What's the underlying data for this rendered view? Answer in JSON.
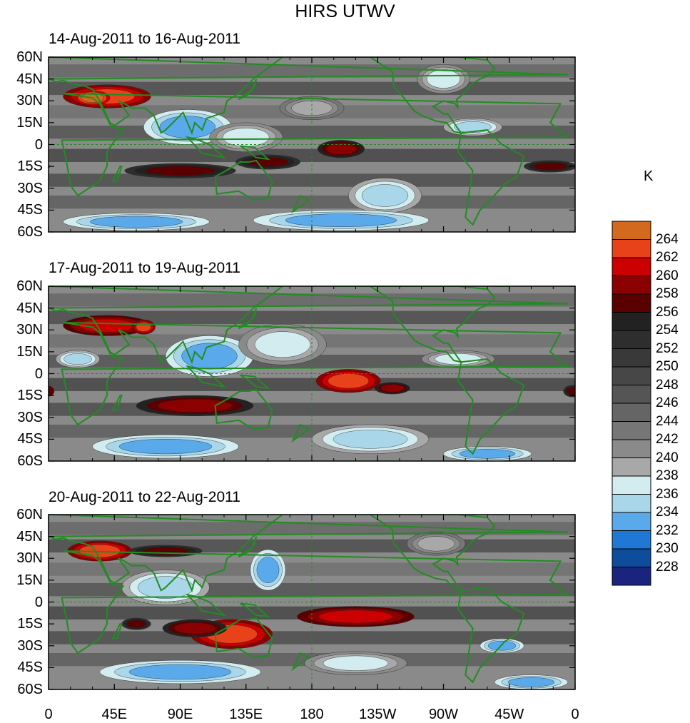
{
  "title": "HIRS UTWV",
  "panels": [
    {
      "title": "14-Aug-2011 to 16-Aug-2011",
      "blobs": [
        {
          "lon": 40,
          "lat": 33,
          "rx": 30,
          "ry": 8,
          "v": 262
        },
        {
          "lon": 30,
          "lat": 32,
          "rx": 12,
          "ry": 5,
          "v": 264
        },
        {
          "lon": 90,
          "lat": -18,
          "rx": 38,
          "ry": 5,
          "v": 257
        },
        {
          "lon": 150,
          "lat": -12,
          "rx": 22,
          "ry": 5,
          "v": 257
        },
        {
          "lon": 200,
          "lat": -3,
          "rx": 16,
          "ry": 6,
          "v": 259
        },
        {
          "lon": 343,
          "lat": -15,
          "rx": 18,
          "ry": 4,
          "v": 257
        },
        {
          "lon": 95,
          "lat": 12,
          "rx": 30,
          "ry": 12,
          "v": 233
        },
        {
          "lon": 135,
          "lat": 5,
          "rx": 25,
          "ry": 10,
          "v": 236
        },
        {
          "lon": 230,
          "lat": -35,
          "rx": 25,
          "ry": 12,
          "v": 234
        },
        {
          "lon": 60,
          "lat": -53,
          "rx": 50,
          "ry": 6,
          "v": 232
        },
        {
          "lon": 200,
          "lat": -52,
          "rx": 60,
          "ry": 7,
          "v": 233
        },
        {
          "lon": 290,
          "lat": 12,
          "rx": 20,
          "ry": 6,
          "v": 235
        },
        {
          "lon": 270,
          "lat": 45,
          "rx": 18,
          "ry": 10,
          "v": 237
        },
        {
          "lon": 180,
          "lat": 25,
          "rx": 22,
          "ry": 8,
          "v": 238
        }
      ]
    },
    {
      "title": "17-Aug-2011 to 19-Aug-2011",
      "blobs": [
        {
          "lon": 40,
          "lat": 33,
          "rx": 30,
          "ry": 7,
          "v": 261
        },
        {
          "lon": 65,
          "lat": 32,
          "rx": 8,
          "ry": 5,
          "v": 263
        },
        {
          "lon": 100,
          "lat": -22,
          "rx": 40,
          "ry": 7,
          "v": 258
        },
        {
          "lon": 205,
          "lat": -5,
          "rx": 22,
          "ry": 8,
          "v": 262
        },
        {
          "lon": 235,
          "lat": -10,
          "rx": 12,
          "ry": 4,
          "v": 258
        },
        {
          "lon": 358,
          "lat": -12,
          "rx": 6,
          "ry": 4,
          "v": 257
        },
        {
          "lon": 110,
          "lat": 12,
          "rx": 30,
          "ry": 14,
          "v": 233
        },
        {
          "lon": 160,
          "lat": 20,
          "rx": 30,
          "ry": 14,
          "v": 236
        },
        {
          "lon": 80,
          "lat": -50,
          "rx": 50,
          "ry": 8,
          "v": 233
        },
        {
          "lon": 220,
          "lat": -45,
          "rx": 40,
          "ry": 10,
          "v": 235
        },
        {
          "lon": 300,
          "lat": -55,
          "rx": 30,
          "ry": 5,
          "v": 232
        },
        {
          "lon": 280,
          "lat": 10,
          "rx": 25,
          "ry": 6,
          "v": 236
        },
        {
          "lon": 20,
          "lat": 10,
          "rx": 15,
          "ry": 6,
          "v": 235
        }
      ]
    },
    {
      "title": "20-Aug-2011 to 22-Aug-2011",
      "blobs": [
        {
          "lon": 35,
          "lat": 35,
          "rx": 22,
          "ry": 7,
          "v": 262
        },
        {
          "lon": 80,
          "lat": 35,
          "rx": 25,
          "ry": 4,
          "v": 257
        },
        {
          "lon": 125,
          "lat": -22,
          "rx": 28,
          "ry": 10,
          "v": 262
        },
        {
          "lon": 100,
          "lat": -18,
          "rx": 22,
          "ry": 6,
          "v": 258
        },
        {
          "lon": 210,
          "lat": -10,
          "rx": 40,
          "ry": 7,
          "v": 261
        },
        {
          "lon": 60,
          "lat": -15,
          "rx": 10,
          "ry": 4,
          "v": 257
        },
        {
          "lon": 80,
          "lat": 10,
          "rx": 30,
          "ry": 12,
          "v": 234
        },
        {
          "lon": 150,
          "lat": 22,
          "rx": 12,
          "ry": 14,
          "v": 233
        },
        {
          "lon": 90,
          "lat": -48,
          "rx": 55,
          "ry": 8,
          "v": 233
        },
        {
          "lon": 210,
          "lat": -42,
          "rx": 35,
          "ry": 8,
          "v": 236
        },
        {
          "lon": 310,
          "lat": -30,
          "rx": 15,
          "ry": 5,
          "v": 232
        },
        {
          "lon": 330,
          "lat": -55,
          "rx": 25,
          "ry": 5,
          "v": 232
        },
        {
          "lon": 265,
          "lat": 40,
          "rx": 20,
          "ry": 8,
          "v": 238
        }
      ]
    }
  ],
  "x_ticks": [
    "0",
    "45E",
    "90E",
    "135E",
    "180",
    "135W",
    "90W",
    "45W",
    "0"
  ],
  "y_ticks": [
    "60N",
    "45N",
    "30N",
    "15N",
    "0",
    "15S",
    "30S",
    "45S",
    "60S"
  ],
  "colorbar": {
    "unit": "K",
    "labels": [
      "264",
      "262",
      "260",
      "258",
      "256",
      "254",
      "252",
      "250",
      "248",
      "246",
      "244",
      "242",
      "240",
      "238",
      "236",
      "234",
      "232",
      "230",
      "228"
    ],
    "colors": [
      "#d2691e",
      "#e8421a",
      "#cc0000",
      "#8b0000",
      "#5a0000",
      "#222222",
      "#2e2e2e",
      "#393939",
      "#474747",
      "#555555",
      "#656565",
      "#767676",
      "#8a8a8a",
      "#a8a8a8",
      "#d3ecf0",
      "#a9d6e8",
      "#5aaaeb",
      "#1f78d6",
      "#0e4d9c",
      "#1a237e"
    ]
  },
  "colors": {
    "coast": "#228b22",
    "background_field": "#8a8a8a"
  }
}
